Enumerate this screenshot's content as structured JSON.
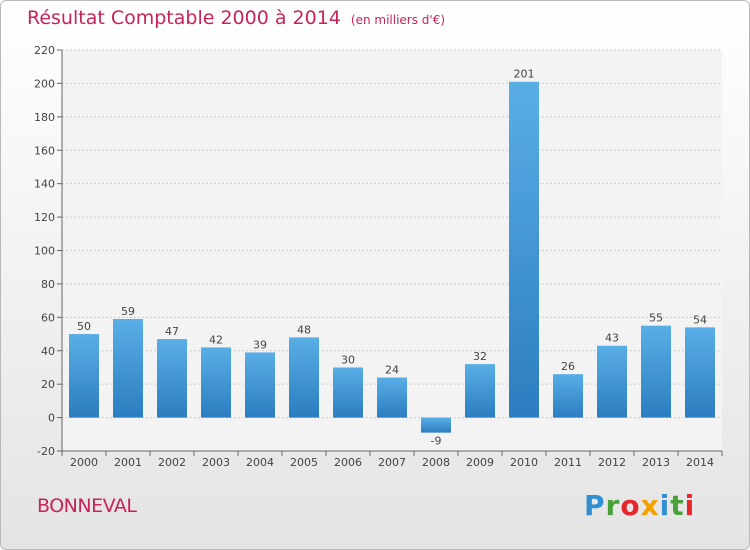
{
  "header": {
    "title": "Résultat Comptable 2000 à 2014",
    "subtitle": "(en milliers d'€)"
  },
  "footer": {
    "commune": "BONNEVAL",
    "logo_letters": [
      {
        "ch": "P",
        "color": "#2f8fd0"
      },
      {
        "ch": "r",
        "color": "#4aa13a"
      },
      {
        "ch": "o",
        "color": "#e7262a"
      },
      {
        "ch": "x",
        "color": "#f5a000"
      },
      {
        "ch": "i",
        "color": "#2f8fd0"
      },
      {
        "ch": "t",
        "color": "#4aa13a"
      },
      {
        "ch": "i",
        "color": "#e7262a"
      }
    ]
  },
  "chart_data": {
    "type": "bar",
    "title": "Résultat Comptable 2000 à 2014",
    "subtitle": "(en milliers d'€)",
    "categories": [
      "2000",
      "2001",
      "2002",
      "2003",
      "2004",
      "2005",
      "2006",
      "2007",
      "2008",
      "2009",
      "2010",
      "2011",
      "2012",
      "2013",
      "2014"
    ],
    "values": [
      50,
      59,
      47,
      42,
      39,
      48,
      30,
      24,
      -9,
      32,
      201,
      26,
      43,
      55,
      54
    ],
    "data_labels": [
      "50",
      "59",
      "47",
      "42",
      "39",
      "48",
      "30",
      "24",
      "-9",
      "32",
      "201",
      "26",
      "43",
      "55",
      "54"
    ],
    "ylim": [
      -20,
      220
    ],
    "yticks": [
      -20,
      0,
      20,
      40,
      60,
      80,
      100,
      120,
      140,
      160,
      180,
      200,
      220
    ],
    "ytick_labels": [
      "-20",
      "0",
      "20",
      "40",
      "60",
      "80",
      "100",
      "120",
      "140",
      "160",
      "180",
      "200",
      "220"
    ],
    "grid": true,
    "xlabel": "",
    "ylabel": "",
    "colors": {
      "bar_light": "#5aaee6",
      "bar_dark": "#2b7dbf",
      "grid": "#cfcfcf",
      "axis_text": "#444444"
    }
  }
}
